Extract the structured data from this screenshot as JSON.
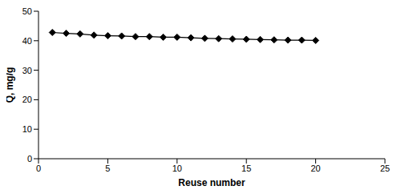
{
  "chart_data": {
    "type": "line",
    "x_label": "Reuse number",
    "y_label": "Q, mg/g",
    "x": [
      1,
      2,
      3,
      4,
      5,
      6,
      7,
      8,
      9,
      10,
      11,
      12,
      13,
      14,
      15,
      16,
      17,
      18,
      19,
      20
    ],
    "values": [
      42.8,
      42.5,
      42.3,
      41.9,
      41.7,
      41.6,
      41.4,
      41.4,
      41.2,
      41.2,
      41.0,
      40.8,
      40.7,
      40.6,
      40.5,
      40.4,
      40.3,
      40.2,
      40.2,
      40.1
    ],
    "color": "#000000",
    "marker": "diamond",
    "xlim": [
      0,
      25
    ],
    "xticks": [
      0,
      5,
      10,
      15,
      20,
      25
    ],
    "ylim": [
      0,
      50
    ],
    "yticks": [
      0,
      10,
      20,
      30,
      40,
      50
    ],
    "grid": false
  }
}
